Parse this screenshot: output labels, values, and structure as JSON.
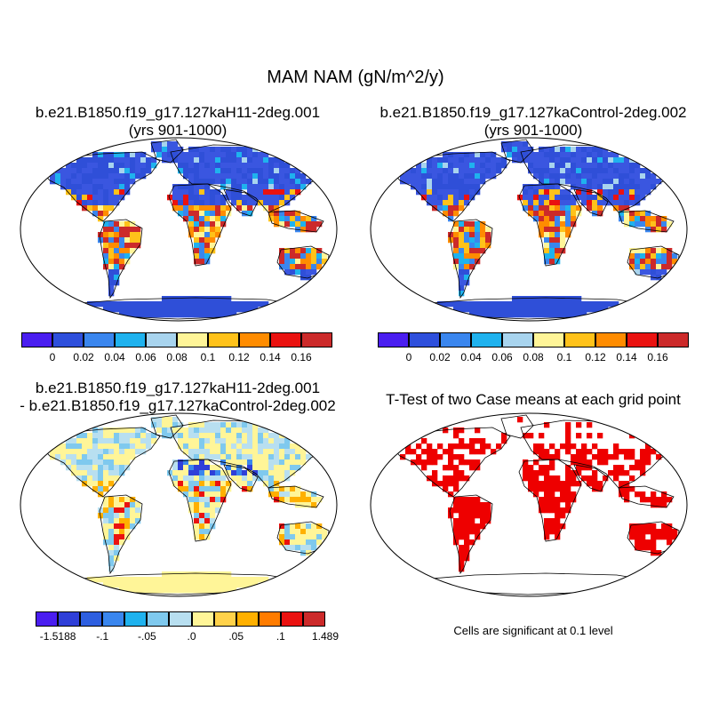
{
  "title": "MAM NAM (gN/m^2/y)",
  "panels": [
    {
      "title_line1": "b.e21.B1850.f19_g17.127kaH11-2deg.001",
      "title_line2": "(yrs 901-1000)"
    },
    {
      "title_line1": "b.e21.B1850.f19_g17.127kaControl-2deg.002",
      "title_line2": "(yrs 901-1000)"
    },
    {
      "title_line1": "b.e21.B1850.f19_g17.127kaH11-2deg.001",
      "title_line2": "- b.e21.B1850.f19_g17.127kaControl-2deg.002"
    },
    {
      "title_line1": "T-Test of two Case means at each grid point",
      "title_line2": ""
    }
  ],
  "colorbar_top": {
    "colors": [
      "#4a1ef0",
      "#2e4fdc",
      "#3a86ee",
      "#1fb2ee",
      "#a8d4ee",
      "#fff598",
      "#ffc21a",
      "#ff8c00",
      "#ea1210",
      "#cc2a2a"
    ],
    "labels": [
      "0",
      "0.02",
      "0.04",
      "0.06",
      "0.08",
      "0.1",
      "0.12",
      "0.14",
      "0.16"
    ]
  },
  "colorbar_diff": {
    "colors": [
      "#4a1ef0",
      "#2f3fd8",
      "#2e5fe0",
      "#3a86ee",
      "#1fb2ee",
      "#7fc9ee",
      "#b8dff0",
      "#fff598",
      "#ffd24a",
      "#ffb000",
      "#ff7c00",
      "#ea1210",
      "#cc2a2a"
    ],
    "labels": [
      "-1.5188",
      "",
      "-.1",
      "",
      "-.05",
      "",
      ".0",
      "",
      ".05",
      "",
      ".1",
      "",
      "1.489"
    ]
  },
  "significance_note": "Cells are significant at 0.1 level",
  "colors": {
    "ocean": "#ffffff",
    "land_low": "#2f4fd8",
    "significant": "#ee0000",
    "diff_base": "#fff598"
  }
}
